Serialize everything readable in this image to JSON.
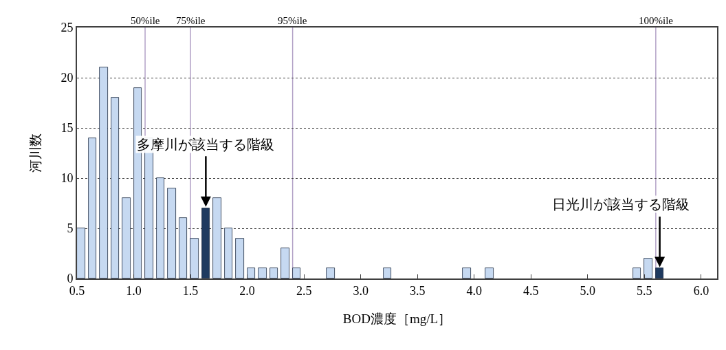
{
  "chart_data": {
    "type": "histogram",
    "xlabel": "BOD濃度［mg/L］",
    "ylabel": "河川数",
    "bins": [
      0.5,
      0.6,
      0.7,
      0.8,
      0.9,
      1.0,
      1.1,
      1.2,
      1.3,
      1.4,
      1.5,
      1.6,
      1.7,
      1.8,
      1.9,
      2.0,
      2.1,
      2.2,
      2.3,
      2.4,
      2.5,
      2.6,
      2.7,
      2.8,
      2.9,
      3.0,
      3.1,
      3.2,
      3.3,
      3.4,
      3.5,
      3.6,
      3.7,
      3.8,
      3.9,
      4.0,
      4.1,
      4.2,
      4.3,
      4.4,
      4.5,
      4.6,
      4.7,
      4.8,
      4.9,
      5.0,
      5.1,
      5.2,
      5.3,
      5.4,
      5.5,
      5.6,
      5.7
    ],
    "values": [
      5,
      14,
      21,
      18,
      8,
      19,
      14,
      10,
      9,
      6,
      4,
      7,
      8,
      5,
      4,
      1,
      1,
      1,
      3,
      1,
      0,
      0,
      1,
      0,
      0,
      0,
      0,
      1,
      0,
      0,
      0,
      0,
      0,
      0,
      1,
      0,
      1,
      0,
      0,
      0,
      0,
      0,
      0,
      0,
      0,
      0,
      0,
      0,
      0,
      1,
      2,
      1
    ],
    "colors": [
      "#c6d9f1",
      "#c6d9f1",
      "#c6d9f1",
      "#c6d9f1",
      "#c6d9f1",
      "#c6d9f1",
      "#c6d9f1",
      "#c6d9f1",
      "#c6d9f1",
      "#c6d9f1",
      "#c6d9f1",
      "#1f3a5f",
      "#c6d9f1",
      "#c6d9f1",
      "#c6d9f1",
      "#c6d9f1",
      "#c6d9f1",
      "#c6d9f1",
      "#c6d9f1",
      "#c6d9f1",
      "#c6d9f1",
      "#c6d9f1",
      "#c6d9f1",
      "#c6d9f1",
      "#c6d9f1",
      "#c6d9f1",
      "#c6d9f1",
      "#c6d9f1",
      "#c6d9f1",
      "#c6d9f1",
      "#c6d9f1",
      "#c6d9f1",
      "#c6d9f1",
      "#c6d9f1",
      "#c6d9f1",
      "#c6d9f1",
      "#c6d9f1",
      "#c6d9f1",
      "#c6d9f1",
      "#c6d9f1",
      "#c6d9f1",
      "#c6d9f1",
      "#c6d9f1",
      "#c6d9f1",
      "#c6d9f1",
      "#c6d9f1",
      "#c6d9f1",
      "#c6d9f1",
      "#c6d9f1",
      "#c6d9f1",
      "#c6d9f1",
      "#1f3a5f"
    ],
    "xlim": [
      0.5,
      6.14
    ],
    "xticks": [
      {
        "value": 0.5,
        "label": "0.5"
      },
      {
        "value": 1.0,
        "label": "1.0"
      },
      {
        "value": 1.5,
        "label": "1.5"
      },
      {
        "value": 2.0,
        "label": "2.0"
      },
      {
        "value": 2.5,
        "label": "2.5"
      },
      {
        "value": 3.0,
        "label": "3.0"
      },
      {
        "value": 3.5,
        "label": "3.5"
      },
      {
        "value": 4.0,
        "label": "4.0"
      },
      {
        "value": 4.5,
        "label": "4.5"
      },
      {
        "value": 5.0,
        "label": "5.0"
      },
      {
        "value": 5.5,
        "label": "5.5"
      },
      {
        "value": 6.0,
        "label": "6.0"
      }
    ],
    "ylim": [
      0,
      25
    ],
    "yticks": [
      0,
      5,
      10,
      15,
      20,
      25
    ],
    "grid": "y",
    "ref_lines": [
      {
        "axis": "x",
        "value": 1.1,
        "label": "50%ile",
        "color": "#b3a2c7"
      },
      {
        "axis": "x",
        "value": 1.5,
        "label": "75%ile",
        "color": "#b3a2c7"
      },
      {
        "axis": "x",
        "value": 2.4,
        "label": "95%ile",
        "color": "#b3a2c7"
      },
      {
        "axis": "x",
        "value": 5.6,
        "label": "100%ile",
        "color": "#b3a2c7"
      }
    ],
    "annotations": [
      {
        "text": "多摩川が該当する階級",
        "x": 1.635,
        "y": 7
      },
      {
        "text": "日光川が該当する階級",
        "x": 5.635,
        "y": 1
      }
    ]
  }
}
